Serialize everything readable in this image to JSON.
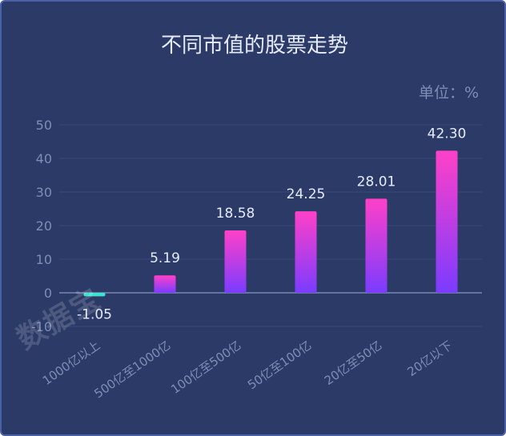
{
  "chart_data": {
    "type": "bar",
    "title": "不同市值的股票走势",
    "unit_label": "单位：%",
    "categories": [
      "1000亿以上",
      "500亿至1000亿",
      "100亿至500亿",
      "50亿至100亿",
      "20亿至50亿",
      "20亿以下"
    ],
    "values": [
      -1.05,
      5.19,
      18.58,
      24.25,
      28.01,
      42.3
    ],
    "value_labels": [
      "-1.05",
      "5.19",
      "18.58",
      "24.25",
      "28.01",
      "42.30"
    ],
    "ylim": [
      -10,
      50
    ],
    "yticks": [
      50,
      40,
      30,
      20,
      10,
      0,
      -10
    ],
    "grid": true,
    "colors": {
      "background": "#2b3a66",
      "bar_top": "#ff40c8",
      "bar_bottom": "#7a3cff",
      "negative_bar": "#3ee3d0",
      "text": "#e6ebff",
      "muted_text": "#7f8cb8"
    }
  },
  "watermark": "数据宝"
}
